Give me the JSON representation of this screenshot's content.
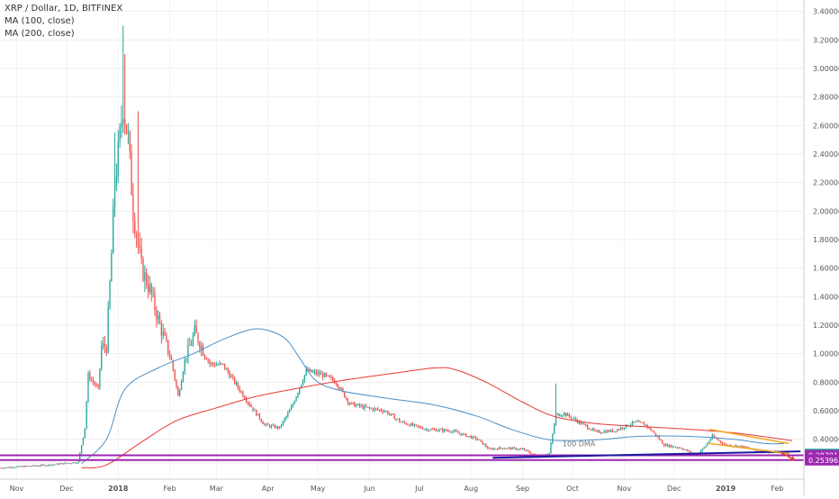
{
  "header": {
    "symbol_line": "XRP / Dollar, 1D, BITFINEX",
    "indicator_1": "MA (100, close)",
    "indicator_2": "MA (200, close)"
  },
  "colors": {
    "up": "#26a69a",
    "down": "#ef5350",
    "ma100": "#4a90c8",
    "ma200": "#e53935",
    "support": "#1a1aa0",
    "magenta_line": "#9c27b0",
    "triangle": "#f5a623",
    "price_badge": "#26a69a",
    "level_badge": "#9c27b0"
  },
  "chart_data": {
    "type": "candlestick",
    "x_axis": {
      "tick_labels": [
        "Nov",
        "Dec",
        "2018",
        "Feb",
        "Mar",
        "Apr",
        "May",
        "Jun",
        "Jul",
        "Aug",
        "Sep",
        "Oct",
        "Nov",
        "Dec",
        "2019",
        "Feb"
      ],
      "start": "2017-10-22",
      "end": "2019-02-17"
    },
    "y_axis": {
      "ylim": [
        0.12,
        3.48
      ],
      "tick_values": [
        0.4,
        0.6,
        0.8,
        1.0,
        1.2,
        1.4,
        1.6,
        1.8,
        2.0,
        2.2,
        2.4,
        2.6,
        2.8,
        3.0,
        3.2,
        3.4
      ],
      "tick_labels": [
        "0.40000",
        "0.60000",
        "0.80000",
        "1.00000",
        "1.20000",
        "1.40000",
        "1.60000",
        "1.80000",
        "2.00000",
        "2.20000",
        "2.40000",
        "2.60000",
        "2.80000",
        "3.00000",
        "3.20000",
        "3.40000"
      ]
    },
    "price_anchors": [
      [
        "2017-10-22",
        0.2
      ],
      [
        "2017-11-20",
        0.22
      ],
      [
        "2017-12-08",
        0.24
      ],
      [
        "2017-12-12",
        0.48
      ],
      [
        "2017-12-14",
        0.85
      ],
      [
        "2017-12-20",
        0.75
      ],
      [
        "2017-12-22",
        1.05
      ],
      [
        "2017-12-25",
        1.05
      ],
      [
        "2017-12-28",
        1.7
      ],
      [
        "2017-12-30",
        2.2
      ],
      [
        "2018-01-01",
        2.4
      ],
      [
        "2018-01-04",
        2.75
      ],
      [
        "2018-01-07",
        2.5
      ],
      [
        "2018-01-10",
        2.0
      ],
      [
        "2018-01-15",
        1.6
      ],
      [
        "2018-01-20",
        1.45
      ],
      [
        "2018-01-26",
        1.2
      ],
      [
        "2018-02-02",
        0.95
      ],
      [
        "2018-02-06",
        0.7
      ],
      [
        "2018-02-10",
        0.95
      ],
      [
        "2018-02-16",
        1.15
      ],
      [
        "2018-02-25",
        0.93
      ],
      [
        "2018-03-05",
        0.92
      ],
      [
        "2018-03-12",
        0.8
      ],
      [
        "2018-03-20",
        0.66
      ],
      [
        "2018-03-30",
        0.5
      ],
      [
        "2018-04-08",
        0.48
      ],
      [
        "2018-04-15",
        0.62
      ],
      [
        "2018-04-24",
        0.88
      ],
      [
        "2018-05-04",
        0.85
      ],
      [
        "2018-05-12",
        0.8
      ],
      [
        "2018-05-20",
        0.65
      ],
      [
        "2018-05-30",
        0.62
      ],
      [
        "2018-06-10",
        0.6
      ],
      [
        "2018-06-20",
        0.52
      ],
      [
        "2018-07-05",
        0.47
      ],
      [
        "2018-07-20",
        0.46
      ],
      [
        "2018-08-05",
        0.4
      ],
      [
        "2018-08-12",
        0.33
      ],
      [
        "2018-08-20",
        0.34
      ],
      [
        "2018-09-01",
        0.33
      ],
      [
        "2018-09-10",
        0.28
      ],
      [
        "2018-09-17",
        0.3
      ],
      [
        "2018-09-21",
        0.57
      ],
      [
        "2018-09-26",
        0.58
      ],
      [
        "2018-10-05",
        0.52
      ],
      [
        "2018-10-15",
        0.45
      ],
      [
        "2018-10-26",
        0.46
      ],
      [
        "2018-11-08",
        0.52
      ],
      [
        "2018-11-14",
        0.5
      ],
      [
        "2018-11-20",
        0.43
      ],
      [
        "2018-11-25",
        0.36
      ],
      [
        "2018-12-05",
        0.34
      ],
      [
        "2018-12-14",
        0.29
      ],
      [
        "2018-12-19",
        0.34
      ],
      [
        "2018-12-24",
        0.42
      ],
      [
        "2019-01-01",
        0.36
      ],
      [
        "2019-01-10",
        0.35
      ],
      [
        "2019-01-20",
        0.32
      ],
      [
        "2019-01-30",
        0.31
      ],
      [
        "2019-02-08",
        0.3
      ]
    ],
    "ma100_anchors": [
      [
        "2017-12-10",
        0.23
      ],
      [
        "2017-12-25",
        0.4
      ],
      [
        "2018-01-05",
        0.75
      ],
      [
        "2018-01-25",
        0.9
      ],
      [
        "2018-02-15",
        1.0
      ],
      [
        "2018-03-05",
        1.1
      ],
      [
        "2018-03-22",
        1.17
      ],
      [
        "2018-04-02",
        1.16
      ],
      [
        "2018-04-12",
        1.1
      ],
      [
        "2018-04-20",
        0.97
      ],
      [
        "2018-04-30",
        0.81
      ],
      [
        "2018-05-15",
        0.74
      ],
      [
        "2018-06-10",
        0.69
      ],
      [
        "2018-07-10",
        0.64
      ],
      [
        "2018-08-05",
        0.56
      ],
      [
        "2018-08-25",
        0.47
      ],
      [
        "2018-09-15",
        0.4
      ],
      [
        "2018-10-01",
        0.39
      ],
      [
        "2018-10-20",
        0.4
      ],
      [
        "2018-11-10",
        0.42
      ],
      [
        "2018-12-10",
        0.42
      ],
      [
        "2019-01-05",
        0.4
      ],
      [
        "2019-01-25",
        0.37
      ],
      [
        "2019-02-05",
        0.37
      ]
    ],
    "ma200_anchors": [
      [
        "2017-12-10",
        0.2
      ],
      [
        "2017-12-25",
        0.22
      ],
      [
        "2018-01-15",
        0.38
      ],
      [
        "2018-02-05",
        0.53
      ],
      [
        "2018-03-01",
        0.62
      ],
      [
        "2018-03-25",
        0.7
      ],
      [
        "2018-04-20",
        0.76
      ],
      [
        "2018-05-20",
        0.82
      ],
      [
        "2018-06-20",
        0.87
      ],
      [
        "2018-07-10",
        0.9
      ],
      [
        "2018-07-22",
        0.89
      ],
      [
        "2018-08-10",
        0.8
      ],
      [
        "2018-09-01",
        0.66
      ],
      [
        "2018-09-20",
        0.56
      ],
      [
        "2018-10-15",
        0.51
      ],
      [
        "2018-11-10",
        0.49
      ],
      [
        "2018-12-10",
        0.47
      ],
      [
        "2019-01-10",
        0.44
      ],
      [
        "2019-02-10",
        0.39
      ]
    ],
    "support_line": [
      [
        "2018-08-14",
        0.27
      ],
      [
        "2019-02-15",
        0.315
      ]
    ],
    "purple_lines": [
      0.287,
      0.254
    ],
    "triangle_upper": [
      [
        "2018-12-22",
        0.47
      ],
      [
        "2019-02-08",
        0.37
      ]
    ],
    "triangle_lower": [
      [
        "2018-12-22",
        0.37
      ],
      [
        "2019-02-08",
        0.3
      ]
    ],
    "arrow": [
      [
        "2019-02-03",
        0.31
      ],
      [
        "2019-02-12",
        0.25
      ]
    ],
    "annotations": [
      {
        "text": "100 DMA",
        "date": "2018-09-25",
        "price": 0.37
      }
    ],
    "price_badges": [
      {
        "label": "0.29579",
        "value": 0.29579,
        "kind": "price"
      },
      {
        "label": "0.28701",
        "value": 0.28701,
        "kind": "level"
      },
      {
        "label": "0.25396",
        "value": 0.25396,
        "kind": "level"
      }
    ]
  }
}
